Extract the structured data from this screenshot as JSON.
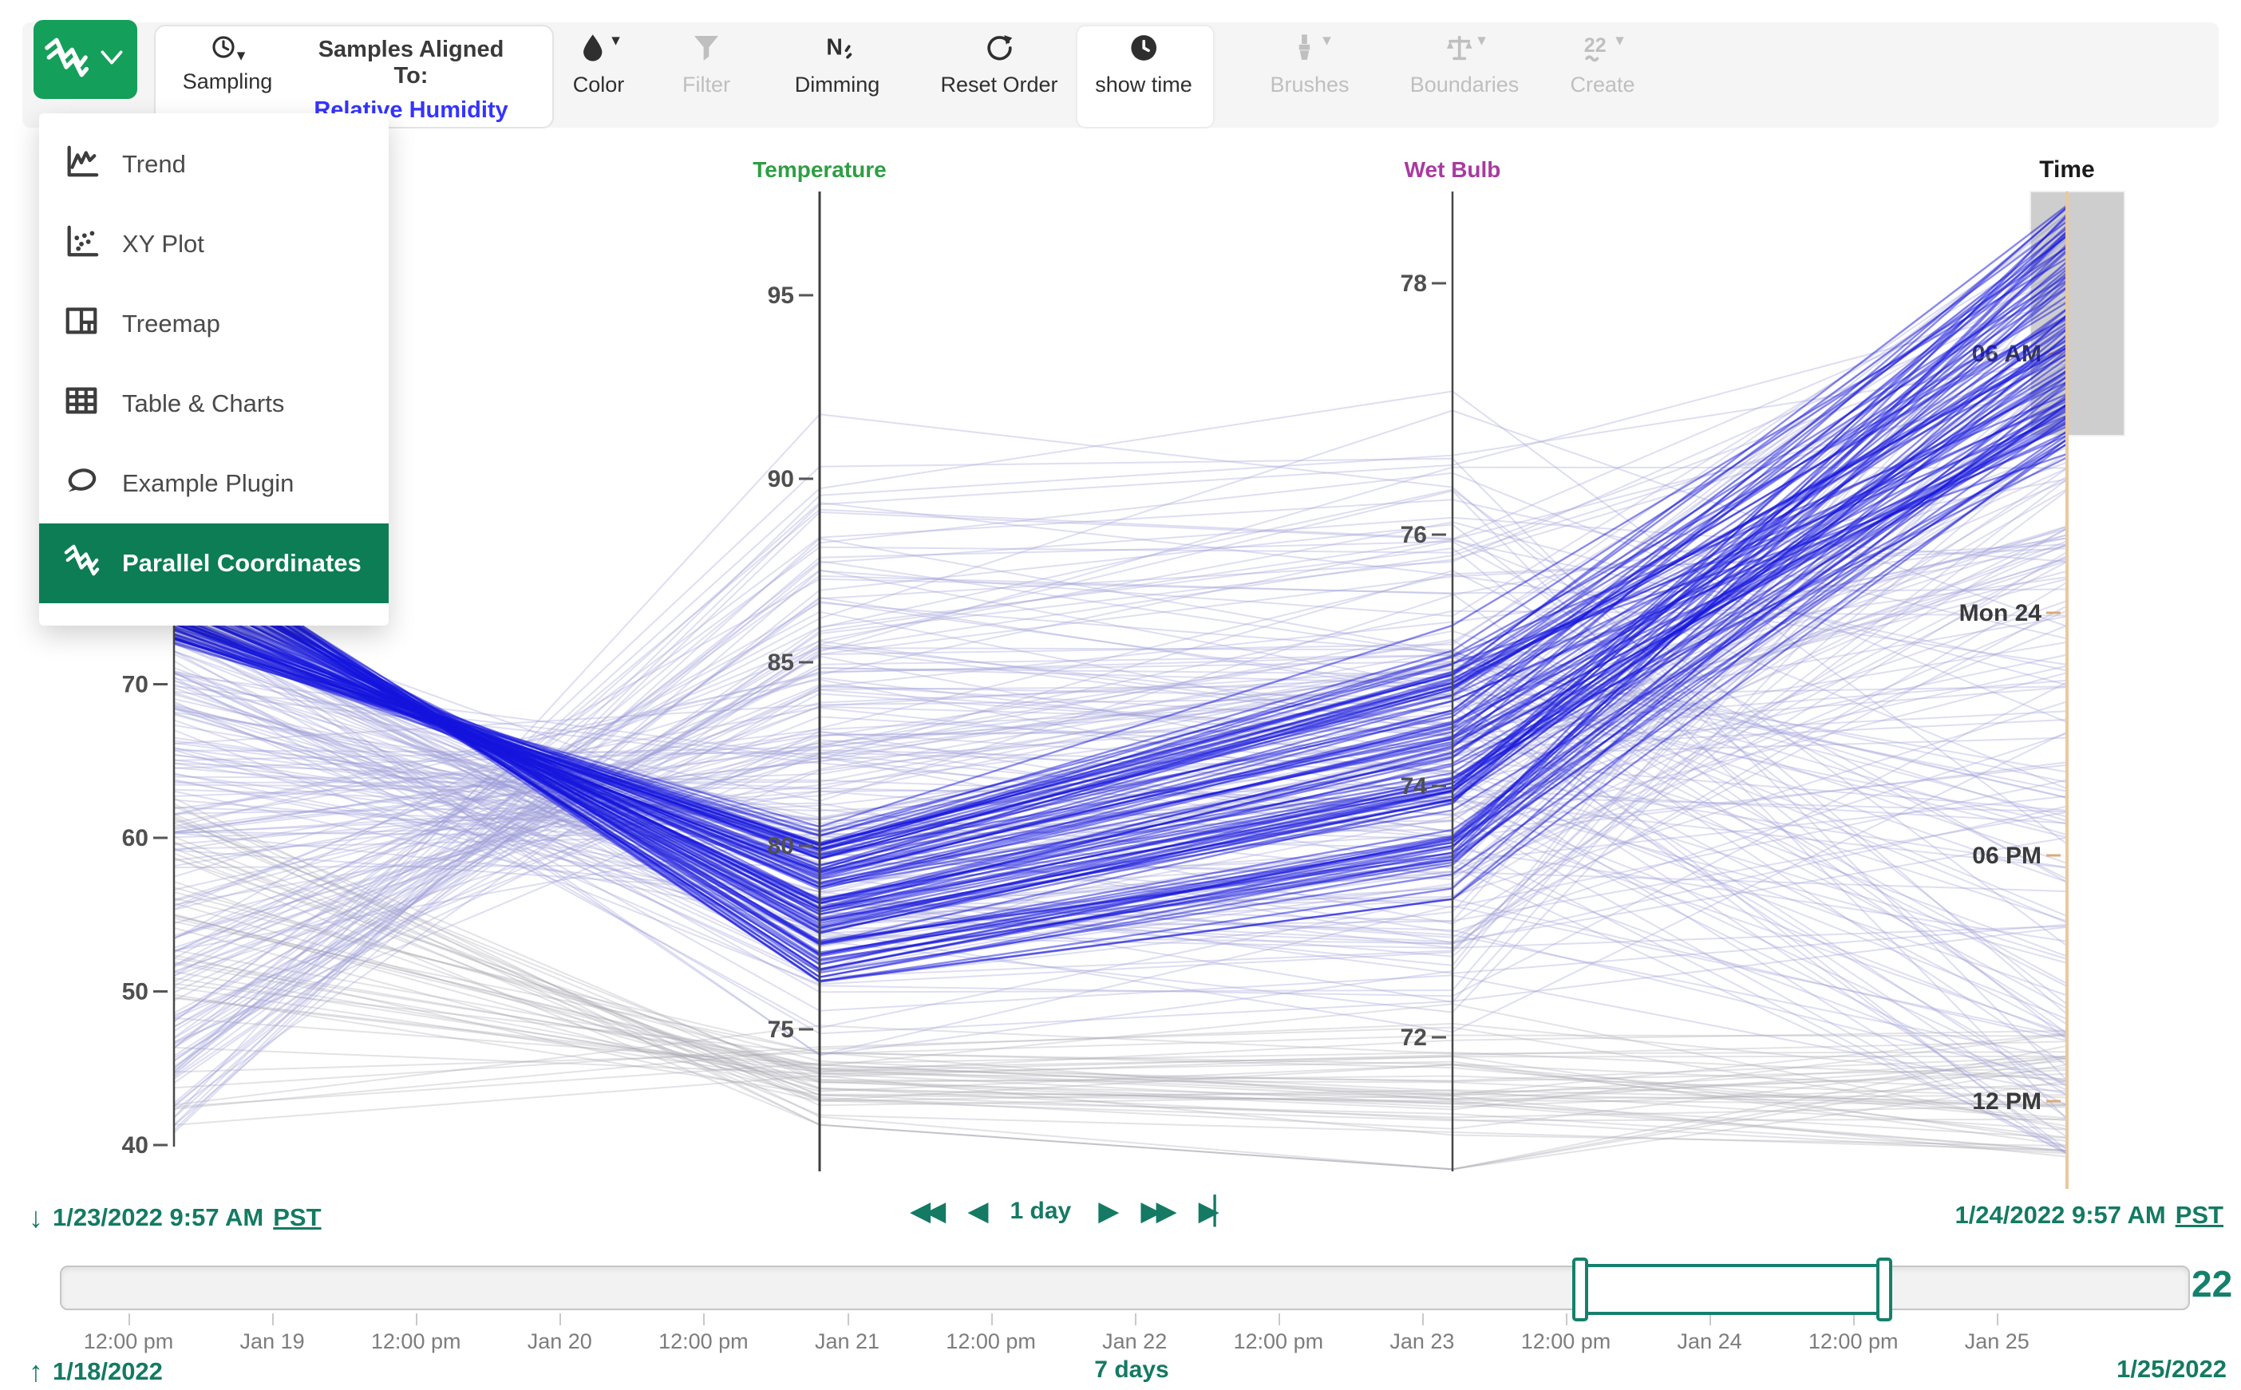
{
  "colors": {
    "accent_green": "#14a05a",
    "menu_highlight_green": "#0c7d55",
    "teal": "#147a63",
    "link_blue": "#3434ff",
    "temperature_label": "#2f9e44",
    "wet_bulb_label": "#a83aa0",
    "time_axis": "#eac89f",
    "highlight_line": "#1414dd",
    "background_line": "#9f9fd8",
    "gray_line": "#a7a7b1",
    "disabled_gray": "#bfbfbf"
  },
  "toolbar": {
    "plugin_button": {
      "icon": "squiggle",
      "chevron": "chevron-down"
    },
    "sampling": {
      "label": "Sampling",
      "icon": "clock",
      "caret": true
    },
    "aligned": {
      "label": "Samples Aligned To:",
      "value": "Relative Humidity"
    },
    "buttons": [
      {
        "id": "color",
        "label": "Color",
        "icon": "droplet",
        "enabled": true,
        "caret": true
      },
      {
        "id": "filter",
        "label": "Filter",
        "icon": "funnel",
        "enabled": false,
        "caret": false
      },
      {
        "id": "dimming",
        "label": "Dimming",
        "icon": "dimming",
        "enabled": true,
        "caret": false
      },
      {
        "id": "reset-order",
        "label": "Reset Order",
        "icon": "reset",
        "enabled": true,
        "caret": false
      },
      {
        "id": "show-time",
        "label": "show time",
        "icon": "clock-filled",
        "enabled": true,
        "caret": false,
        "active": true
      },
      {
        "id": "brushes",
        "label": "Brushes",
        "icon": "brush",
        "enabled": false,
        "caret": true
      },
      {
        "id": "boundaries",
        "label": "Boundaries",
        "icon": "scale",
        "enabled": false,
        "caret": true
      },
      {
        "id": "create",
        "label": "Create",
        "icon": "create",
        "enabled": false,
        "caret": true
      }
    ]
  },
  "plugin_menu": {
    "items": [
      {
        "label": "Trend",
        "icon": "trend",
        "selected": false
      },
      {
        "label": "XY Plot",
        "icon": "xy-plot",
        "selected": false
      },
      {
        "label": "Treemap",
        "icon": "treemap",
        "selected": false
      },
      {
        "label": "Table & Charts",
        "icon": "table",
        "selected": false
      },
      {
        "label": "Example Plugin",
        "icon": "plugin",
        "selected": false
      },
      {
        "label": "Parallel Coordinates",
        "icon": "squiggle",
        "selected": true
      }
    ]
  },
  "chart_data": {
    "type": "parallel-coordinates",
    "axes": [
      {
        "id": "rh",
        "label": "",
        "label_color": "",
        "ticks": [
          "70",
          "60",
          "50",
          "40"
        ]
      },
      {
        "id": "temp",
        "label": "Temperature",
        "label_color": "#2f9e44",
        "ticks": [
          "95",
          "90",
          "85",
          "80",
          "75"
        ]
      },
      {
        "id": "wb",
        "label": "Wet Bulb",
        "label_color": "#a83aa0",
        "ticks": [
          "78",
          "76",
          "74",
          "72"
        ]
      },
      {
        "id": "time",
        "label": "Time",
        "label_color": "#1a1a1a",
        "ticks": [
          "06 AM",
          "Mon 24",
          "06 PM",
          "12 PM"
        ]
      }
    ],
    "time_brush": {
      "axis": "time",
      "region_frac": [
        0.75,
        1.0
      ]
    },
    "series": [
      {
        "name": "low-gray-band",
        "color": "#a7a7b1",
        "opacity": 0.32,
        "stroke_width": 2,
        "count": 46,
        "rh": [
          41,
          63,
          1
        ],
        "temp": {
          "base": 76.2,
          "slope": -0.05,
          "on": "rh",
          "noise": 0.8,
          "clamp": [
            72.4,
            76.0
          ]
        },
        "wb": {
          "base": 31.13,
          "slope": 0.55,
          "on": "temp",
          "noise": 0.4,
          "clamp": [
            70.95,
            73.4
          ]
        },
        "time_frac": [
          0.01,
          0.15
        ]
      },
      {
        "name": "background",
        "color": "#9f9fd8",
        "opacity": 0.34,
        "stroke_width": 2,
        "count": 190,
        "rh": [
          40,
          76,
          0.85
        ],
        "temp": {
          "base": 101.8,
          "slope": -0.33,
          "on": "rh",
          "noise": 3.0,
          "clamp": [
            74.3,
            97.4
          ]
        },
        "wb": {
          "base": 52.8,
          "slope": 0.263,
          "on": "temp",
          "noise": 0.95,
          "clamp": [
            71.1,
            78.5
          ]
        },
        "time_frac": [
          0.015,
          0.985
        ]
      },
      {
        "name": "highlighted",
        "color": "#1414dd",
        "opacity": 0.5,
        "stroke_width": 2.4,
        "count": 95,
        "rh": [
          72.5,
          79.5,
          1
        ],
        "temp": {
          "base": 120.2,
          "slope": -0.55,
          "on": "rh",
          "noise": 0.5,
          "clamp": [
            76.2,
            80.6
          ]
        },
        "wb": {
          "base": 41.2,
          "slope": 0.42,
          "on": "temp",
          "noise": 0.25,
          "clamp": [
            73.1,
            75.3
          ]
        },
        "time_frac": [
          0.73,
          0.99
        ]
      }
    ]
  },
  "playback": {
    "start": {
      "arrow": "down",
      "date": "1/23/2022 9:57 AM",
      "tz": "PST"
    },
    "end": {
      "date": "1/24/2022 9:57 AM",
      "tz": "PST"
    },
    "step_label": "1 day",
    "controls": [
      {
        "id": "fast-backward",
        "glyph": "◀◀"
      },
      {
        "id": "step-backward",
        "glyph": "◀"
      },
      {
        "id": "step-label"
      },
      {
        "id": "step-forward",
        "glyph": "▶"
      },
      {
        "id": "fast-forward",
        "glyph": "▶▶"
      },
      {
        "id": "skip-to-end",
        "glyph": "▶▏"
      }
    ]
  },
  "timeline": {
    "tick_labels": [
      "12:00 pm",
      "Jan 19",
      "12:00 pm",
      "Jan 20",
      "12:00 pm",
      "Jan 21",
      "12:00 pm",
      "Jan 22",
      "12:00 pm",
      "Jan 23",
      "12:00 pm",
      "Jan 24",
      "12:00 pm",
      "Jan 25"
    ],
    "range_start": "1/18/2022",
    "range_end": "1/25/2022",
    "span_label": "7 days",
    "plugin_icon": "22",
    "selection": {
      "from": "1/23/2022 9:57 AM",
      "to": "1/24/2022 9:57 AM"
    }
  }
}
